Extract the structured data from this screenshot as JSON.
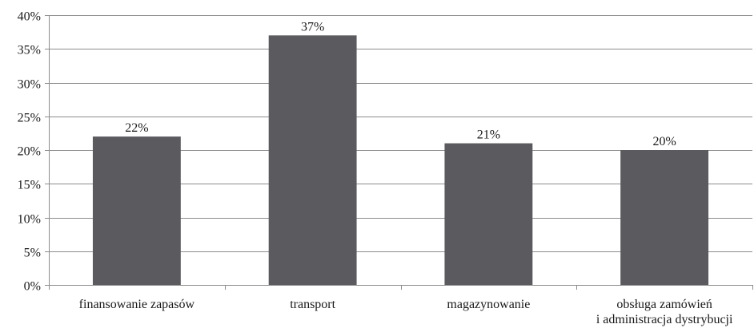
{
  "chart_data": {
    "type": "bar",
    "categories": [
      [
        "finansowanie zapasów"
      ],
      [
        "transport"
      ],
      [
        "magazynowanie"
      ],
      [
        "obsługa zamówień",
        "i administracja dystrybucji"
      ]
    ],
    "values": [
      22,
      37,
      21,
      20
    ],
    "data_labels": [
      "22%",
      "37%",
      "21%",
      "20%"
    ],
    "y_ticks": [
      0,
      5,
      10,
      15,
      20,
      25,
      30,
      35,
      40
    ],
    "y_tick_labels": [
      "0%",
      "5%",
      "10%",
      "15%",
      "20%",
      "25%",
      "30%",
      "35%",
      "40%"
    ],
    "ylim": [
      0,
      40
    ],
    "unit": "%",
    "grid": true,
    "legend": "none",
    "colors": {
      "bar": "#5b5b5f",
      "grid": "#8c8c8c",
      "text": "#1a1a1a"
    }
  }
}
